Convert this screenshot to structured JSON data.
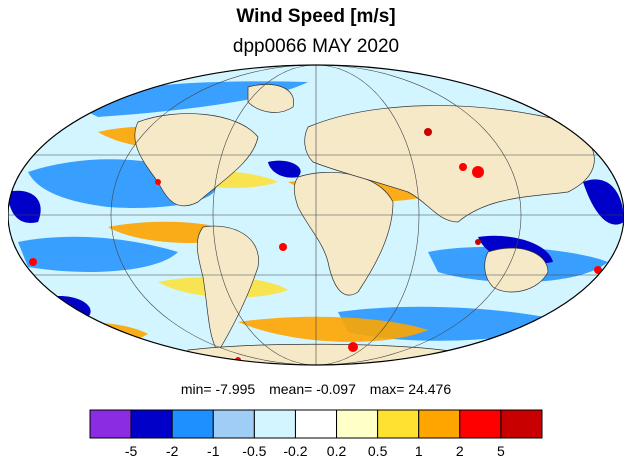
{
  "title": "Wind Speed [m/s]",
  "subtitle": "dpp0066 MAY 2020",
  "stats": {
    "min_label": "min=",
    "min_value": "-7.995",
    "mean_label": "mean=",
    "mean_value": "-0.097",
    "max_label": "max=",
    "max_value": "24.476"
  },
  "colorbar": {
    "colors": [
      "#8b2be2",
      "#0000c8",
      "#1e90ff",
      "#a0cdf5",
      "#d2f5ff",
      "#ffffff",
      "#ffffc8",
      "#ffe132",
      "#ffa500",
      "#ff0000",
      "#c80000"
    ],
    "labels": [
      "-5",
      "-2",
      "-1",
      "-0.5",
      "-0.2",
      "0.2",
      "0.5",
      "1",
      "2",
      "5"
    ]
  },
  "map": {
    "projection": "Mollweide",
    "land_color": "#f5e9c8"
  }
}
